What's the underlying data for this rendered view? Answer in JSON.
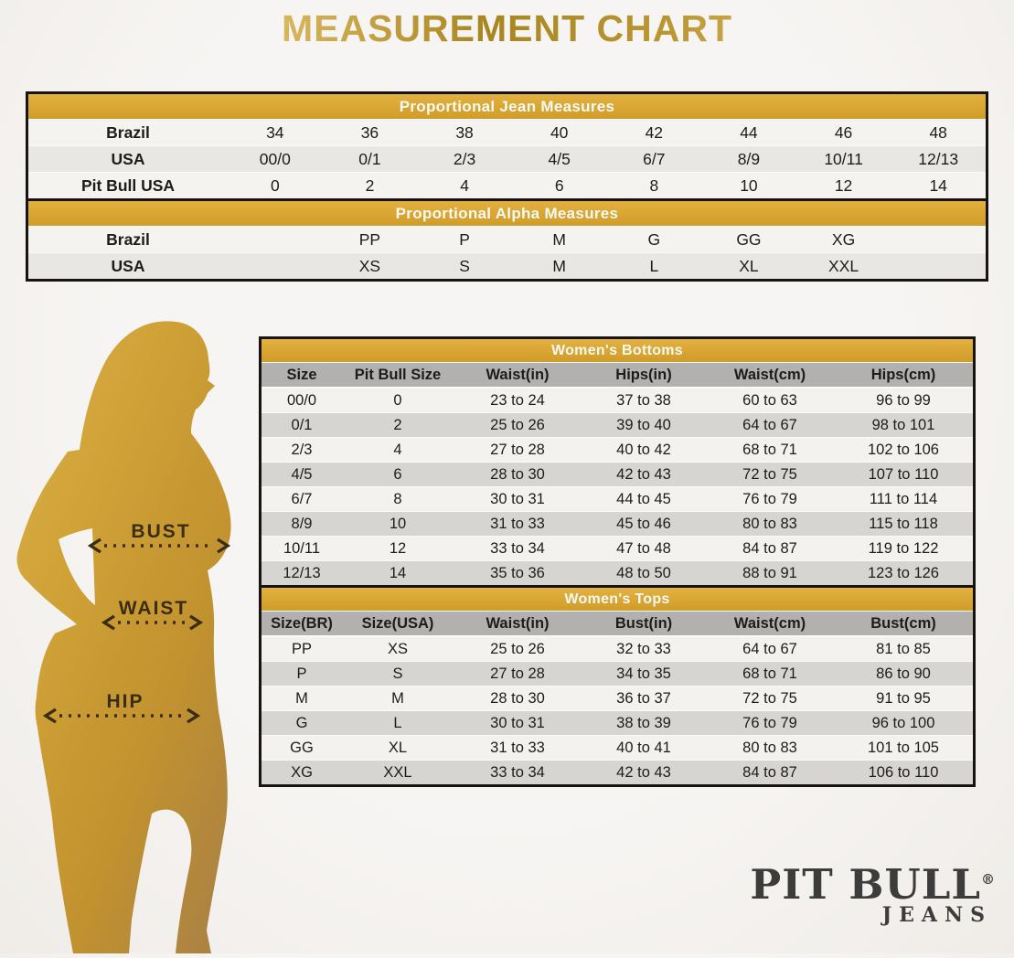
{
  "page_title": "MEASUREMENT CHART",
  "figure": {
    "labels": {
      "bust": "BUST",
      "waist": "WAIST",
      "hip": "HIP"
    }
  },
  "logo": {
    "brand": "PIT BULL",
    "registered": "®",
    "subtitle": "JEANS"
  },
  "colors": {
    "gold_bar": "#d6a232",
    "table_border": "#171310",
    "header_gray": "#b2b1af",
    "row_light": "#f4f3f0",
    "row_mid": "#e9e7e3",
    "row_dark": "#d7d5d1",
    "arrow_brown": "#3b2d11",
    "logo_gray": "#3c3c3c",
    "silhouette_gold_top": "#d8ac40",
    "silhouette_gold_bottom": "#ad8342"
  },
  "chart_data": [
    {
      "type": "table",
      "title": "Proportional Jean Measures",
      "rows": [
        {
          "label": "Brazil",
          "values": [
            "34",
            "36",
            "38",
            "40",
            "42",
            "44",
            "46",
            "48"
          ]
        },
        {
          "label": "USA",
          "values": [
            "00/0",
            "0/1",
            "2/3",
            "4/5",
            "6/7",
            "8/9",
            "10/11",
            "12/13"
          ]
        },
        {
          "label": "Pit Bull USA",
          "values": [
            "0",
            "2",
            "4",
            "6",
            "8",
            "10",
            "12",
            "14"
          ]
        }
      ]
    },
    {
      "type": "table",
      "title": "Proportional Alpha Measures",
      "rows": [
        {
          "label": "Brazil",
          "values": [
            "",
            "PP",
            "P",
            "M",
            "G",
            "GG",
            "XG",
            ""
          ]
        },
        {
          "label": "USA",
          "values": [
            "",
            "XS",
            "S",
            "M",
            "L",
            "XL",
            "XXL",
            ""
          ]
        }
      ]
    },
    {
      "type": "table",
      "title": "Women's Bottoms",
      "headers": [
        "Size",
        "Pit Bull Size",
        "Waist(in)",
        "Hips(in)",
        "Waist(cm)",
        "Hips(cm)"
      ],
      "rows": [
        [
          "00/0",
          "0",
          "23 to 24",
          "37 to 38",
          "60 to 63",
          "96 to 99"
        ],
        [
          "0/1",
          "2",
          "25 to 26",
          "39 to 40",
          "64 to 67",
          "98 to 101"
        ],
        [
          "2/3",
          "4",
          "27 to 28",
          "40 to 42",
          "68 to 71",
          "102 to 106"
        ],
        [
          "4/5",
          "6",
          "28 to 30",
          "42 to 43",
          "72 to 75",
          "107 to 110"
        ],
        [
          "6/7",
          "8",
          "30 to 31",
          "44 to 45",
          "76 to 79",
          "111 to 114"
        ],
        [
          "8/9",
          "10",
          "31 to 33",
          "45 to 46",
          "80 to 83",
          "115 to 118"
        ],
        [
          "10/11",
          "12",
          "33 to 34",
          "47 to 48",
          "84 to 87",
          "119 to 122"
        ],
        [
          "12/13",
          "14",
          "35 to 36",
          "48 to 50",
          "88 to 91",
          "123 to 126"
        ]
      ]
    },
    {
      "type": "table",
      "title": "Women's Tops",
      "headers": [
        "Size(BR)",
        "Size(USA)",
        "Waist(in)",
        "Bust(in)",
        "Waist(cm)",
        "Bust(cm)"
      ],
      "rows": [
        [
          "PP",
          "XS",
          "25 to 26",
          "32 to 33",
          "64 to 67",
          "81 to 85"
        ],
        [
          "P",
          "S",
          "27 to 28",
          "34 to 35",
          "68 to 71",
          "86 to 90"
        ],
        [
          "M",
          "M",
          "28 to 30",
          "36 to 37",
          "72 to 75",
          "91 to 95"
        ],
        [
          "G",
          "L",
          "30 to 31",
          "38 to 39",
          "76 to 79",
          "96 to 100"
        ],
        [
          "GG",
          "XL",
          "31 to 33",
          "40 to 41",
          "80 to 83",
          "101 to 105"
        ],
        [
          "XG",
          "XXL",
          "33 to 34",
          "42 to 43",
          "84 to 87",
          "106 to 110"
        ]
      ]
    }
  ]
}
